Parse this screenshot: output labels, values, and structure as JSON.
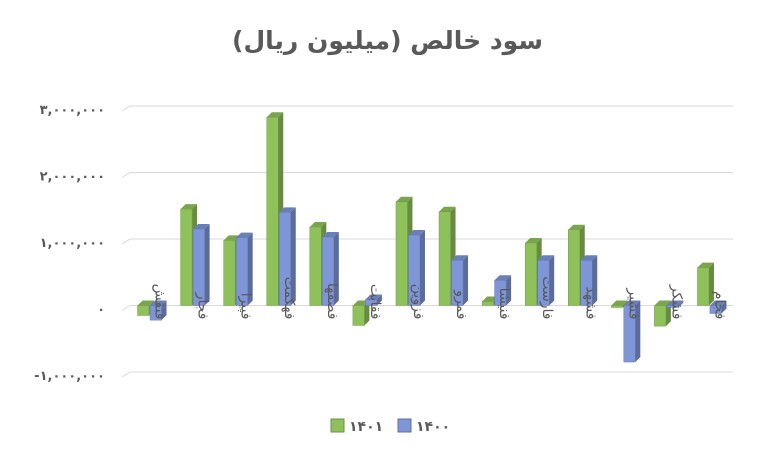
{
  "chart_data": {
    "type": "bar",
    "title": "سود خالص (میلیون ریال)",
    "categories": [
      "فنقش",
      "فجار",
      "فپیرا",
      "فهکمت",
      "فصفها",
      "فقابت",
      "فزوین",
      "فمرو",
      "فنیشا",
      "فارست",
      "فشهد",
      "فشیر",
      "فشکر",
      "فجام"
    ],
    "series": [
      {
        "name": "۱۴۰۱",
        "color": "#8fc15a",
        "values": [
          -150000,
          1450000,
          980000,
          2830000,
          1180000,
          -300000,
          1560000,
          1410000,
          60000,
          940000,
          1140000,
          -30000,
          -310000,
          570000
        ]
      },
      {
        "name": "۱۴۰۰",
        "color": "#7e95d7",
        "values": [
          -220000,
          1150000,
          1020000,
          1400000,
          1030000,
          90000,
          1060000,
          680000,
          380000,
          680000,
          680000,
          -850000,
          -30000,
          -120000
        ]
      }
    ],
    "yticks": [
      -1000000,
      0,
      1000000,
      2000000,
      3000000
    ],
    "ytick_labels": [
      "-۱,۰۰۰,۰۰۰",
      "۰",
      "۱,۰۰۰,۰۰۰",
      "۲,۰۰۰,۰۰۰",
      "۳,۰۰۰,۰۰۰"
    ],
    "ylim": [
      -1000000,
      3000000
    ],
    "grid": true,
    "legend_position": "bottom",
    "xlabel": "",
    "ylabel": ""
  }
}
